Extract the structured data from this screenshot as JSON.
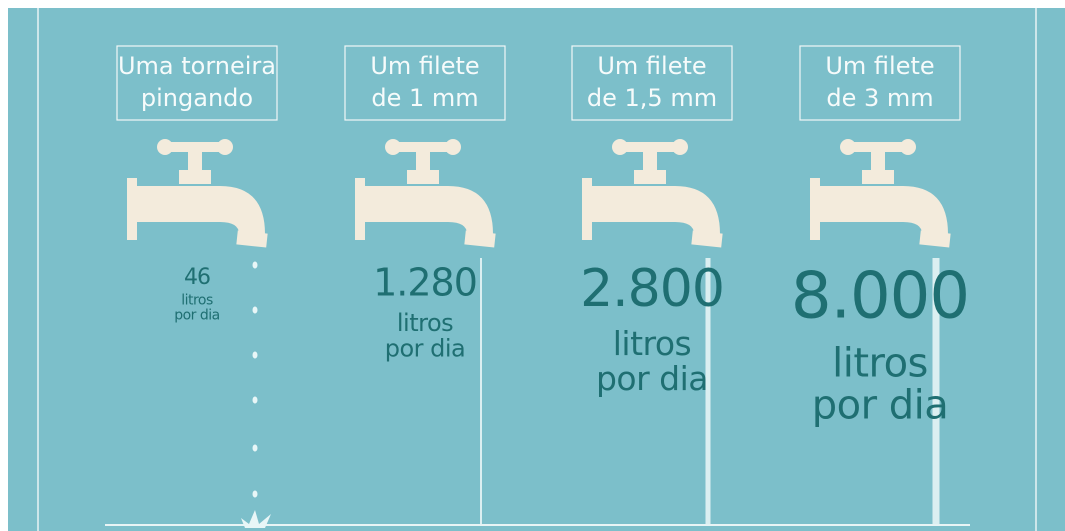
{
  "items": [
    {
      "label_lines": [
        "Uma torneira",
        "pingando"
      ],
      "amount": "46",
      "unit_lines": [
        "litros",
        "por dia"
      ]
    },
    {
      "label_lines": [
        "Um filete",
        "de 1 mm"
      ],
      "amount": "1.280",
      "unit_lines": [
        "litros",
        "por dia"
      ]
    },
    {
      "label_lines": [
        "Um filete",
        "de 1,5 mm"
      ],
      "amount": "2.800",
      "unit_lines": [
        "litros",
        "por dia"
      ]
    },
    {
      "label_lines": [
        "Um filete",
        "de 3 mm"
      ],
      "amount": "8.000",
      "unit_lines": [
        "litros",
        "por dia"
      ]
    }
  ]
}
